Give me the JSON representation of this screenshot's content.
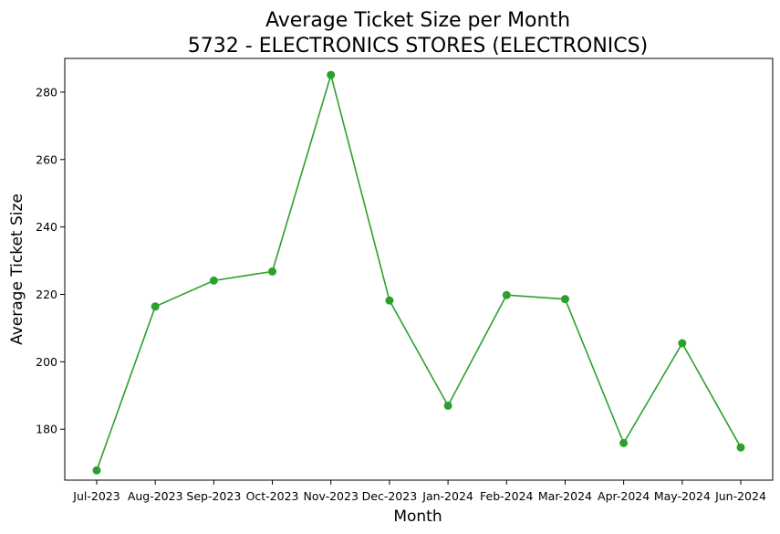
{
  "chart_data": {
    "type": "line",
    "title": "Average Ticket Size per Month",
    "subtitle": "5732 - ELECTRONICS STORES (ELECTRONICS)",
    "xlabel": "Month",
    "ylabel": "Average Ticket Size",
    "categories": [
      "Jul-2023",
      "Aug-2023",
      "Sep-2023",
      "Oct-2023",
      "Nov-2023",
      "Dec-2023",
      "Jan-2024",
      "Feb-2024",
      "Mar-2024",
      "Apr-2024",
      "May-2024",
      "Jun-2024"
    ],
    "series": [
      {
        "values": [
          167.8,
          216.4,
          224.1,
          226.8,
          285.1,
          218.2,
          187.0,
          219.8,
          218.6,
          175.9,
          205.5,
          174.6
        ],
        "color": "#2ca02c",
        "marker": "circle"
      }
    ],
    "yticks": [
      180,
      200,
      220,
      240,
      260,
      280
    ],
    "ylim": [
      164.9,
      290.0
    ],
    "grid": false,
    "legend": "none"
  }
}
